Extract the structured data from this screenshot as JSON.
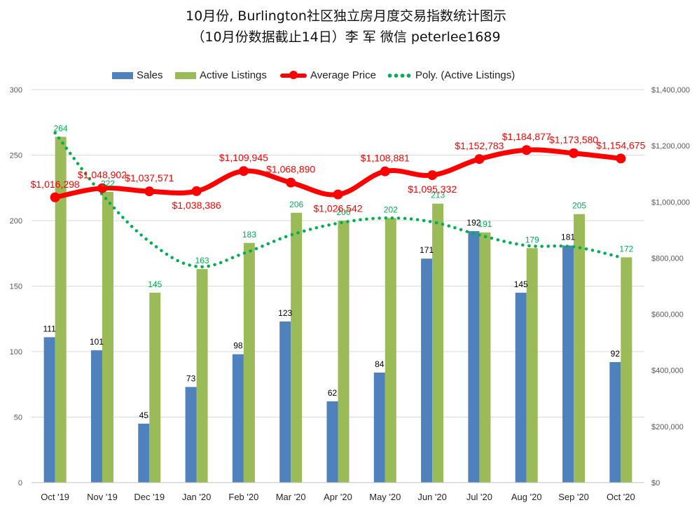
{
  "title": {
    "line1": "10月份, Burlington社区独立房月度交易指数统计图示",
    "line2": "（10月份数据截止14日）李 军  微信  peterlee1689"
  },
  "legend": {
    "sales": "Sales",
    "active": "Active Listings",
    "price": "Average Price",
    "poly": "Poly. (Active Listings)"
  },
  "colors": {
    "sales": "#4f81bd",
    "active": "#9bbb59",
    "price": "#ff0000",
    "poly": "#00b050",
    "sales_label": "#000000",
    "active_label": "#00b050",
    "price_label": "#ff0000"
  },
  "chart_data": {
    "type": "bar",
    "categories": [
      "Oct '19",
      "Nov '19",
      "Dec '19",
      "Jan '20",
      "Feb '20",
      "Mar '20",
      "Apr '20",
      "May '20",
      "Jun '20",
      "Jul '20",
      "Aug '20",
      "Sep '20",
      "Oct '20"
    ],
    "series": [
      {
        "name": "Sales",
        "type": "bar",
        "axis": "left",
        "values": [
          111,
          101,
          45,
          73,
          98,
          123,
          62,
          84,
          171,
          192,
          145,
          181,
          92
        ],
        "labels": [
          "111",
          "101",
          "45",
          "73",
          "98",
          "123",
          "62",
          "84",
          "171",
          "192",
          "145",
          "181",
          "92"
        ]
      },
      {
        "name": "Active Listings",
        "type": "bar",
        "axis": "left",
        "values": [
          264,
          222,
          145,
          163,
          183,
          206,
          200,
          202,
          213,
          191,
          179,
          205,
          172
        ],
        "labels": [
          "264",
          "222",
          "145",
          "163",
          "183",
          "206",
          "200",
          "202",
          "213",
          "191",
          "179",
          "205",
          "172"
        ]
      },
      {
        "name": "Average Price",
        "type": "line",
        "axis": "right",
        "values": [
          1016298,
          1048902,
          1037571,
          1038386,
          1109945,
          1068890,
          1026542,
          1108881,
          1095332,
          1152783,
          1184877,
          1173580,
          1154675
        ],
        "labels": [
          "$1,016,298",
          "$1,048,902",
          "$1,037,571",
          "$1,038,386",
          "$1,109,945",
          "$1,068,890",
          "$1,026,542",
          "$1,108,881",
          "$1,095,332",
          "$1,152,783",
          "$1,184,877",
          "$1,173,580",
          "$1,154,675"
        ]
      },
      {
        "name": "Poly. (Active Listings)",
        "type": "trendline",
        "axis": "left",
        "values": [
          267,
          220,
          184,
          165,
          175,
          189,
          198,
          202,
          199,
          189,
          181,
          180,
          172
        ]
      }
    ],
    "y_left": {
      "min": 0,
      "max": 300,
      "ticks": [
        "0",
        "50",
        "100",
        "150",
        "200",
        "250",
        "300"
      ]
    },
    "y_right": {
      "min": 0,
      "max": 1400000,
      "ticks": [
        "$0",
        "$200,000",
        "$400,000",
        "$600,000",
        "$800,000",
        "$1,000,000",
        "$1,200,000",
        "$1,400,000"
      ]
    },
    "grid": true,
    "legend_position": "top"
  }
}
